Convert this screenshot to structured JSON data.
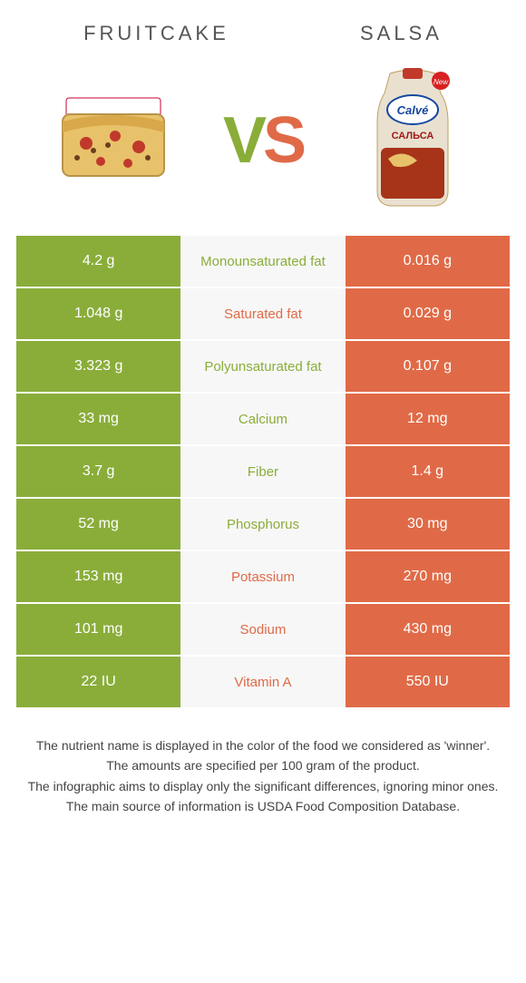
{
  "header": {
    "left_title": "Fruitcake",
    "right_title": "Salsa"
  },
  "vs": {
    "v": "V",
    "s": "S"
  },
  "colors": {
    "left": "#8aad3a",
    "right": "#e06a47",
    "mid_bg": "#f7f7f7"
  },
  "rows": [
    {
      "left": "4.2 g",
      "label": "Monounsaturated fat",
      "right": "0.016 g",
      "winner": "left"
    },
    {
      "left": "1.048 g",
      "label": "Saturated fat",
      "right": "0.029 g",
      "winner": "right"
    },
    {
      "left": "3.323 g",
      "label": "Polyunsaturated fat",
      "right": "0.107 g",
      "winner": "left"
    },
    {
      "left": "33 mg",
      "label": "Calcium",
      "right": "12 mg",
      "winner": "left"
    },
    {
      "left": "3.7 g",
      "label": "Fiber",
      "right": "1.4 g",
      "winner": "left"
    },
    {
      "left": "52 mg",
      "label": "Phosphorus",
      "right": "30 mg",
      "winner": "left"
    },
    {
      "left": "153 mg",
      "label": "Potassium",
      "right": "270 mg",
      "winner": "right"
    },
    {
      "left": "101 mg",
      "label": "Sodium",
      "right": "430 mg",
      "winner": "right"
    },
    {
      "left": "22 IU",
      "label": "Vitamin A",
      "right": "550 IU",
      "winner": "right"
    }
  ],
  "footnotes": [
    "The nutrient name is displayed in the color of the food we considered as 'winner'.",
    "The amounts are specified per 100 gram of the product.",
    "The infographic aims to display only the significant differences, ignoring minor ones.",
    "The main source of information is USDA Food Composition Database."
  ]
}
